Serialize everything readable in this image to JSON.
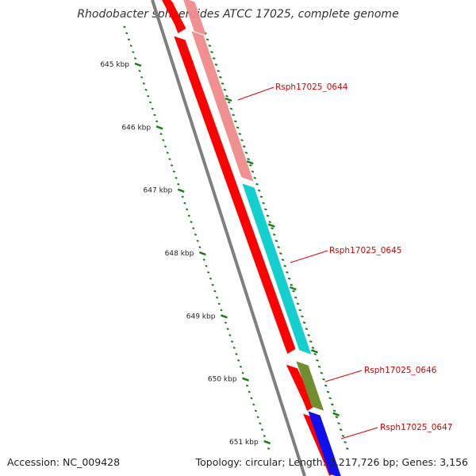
{
  "title": "Rhodobacter sphaeroides ATCC 17025, complete genome",
  "accession": "Accession: NC_009428",
  "summary": "Topology: circular; Length: 3,217,726 bp; Genes: 3,156",
  "scale": {
    "unit": "kbp",
    "ticks": [
      {
        "value": 645,
        "label": "645 kbp"
      },
      {
        "value": 646,
        "label": "646 kbp"
      },
      {
        "value": 647,
        "label": "647 kbp"
      },
      {
        "value": 648,
        "label": "648 kbp"
      },
      {
        "value": 649,
        "label": "649 kbp"
      },
      {
        "value": 650,
        "label": "650 kbp"
      },
      {
        "value": 651,
        "label": "651 kbp"
      }
    ]
  },
  "genes": [
    {
      "id": "Rsph17025_0644",
      "start_kbp": 644.2,
      "end_kbp": 646.95,
      "cog_color": "#f08a8a",
      "strand": "-"
    },
    {
      "id": "Rsph17025_0645",
      "start_kbp": 646.98,
      "end_kbp": 649.65,
      "cog_color": "#13d0cf",
      "strand": "-"
    },
    {
      "id": "Rsph17025_0646",
      "start_kbp": 649.68,
      "end_kbp": 650.45,
      "cog_color": "#6f8e2f",
      "strand": "-"
    },
    {
      "id": "Rsph17025_0647",
      "start_kbp": 650.48,
      "end_kbp": 651.5,
      "cog_color": "#1010ee",
      "strand": "-"
    }
  ],
  "colors": {
    "gene_track": "#ff0000",
    "backbone": "#7f7f7f",
    "ticks": "#1a7f1a",
    "label": "#dd0000"
  }
}
